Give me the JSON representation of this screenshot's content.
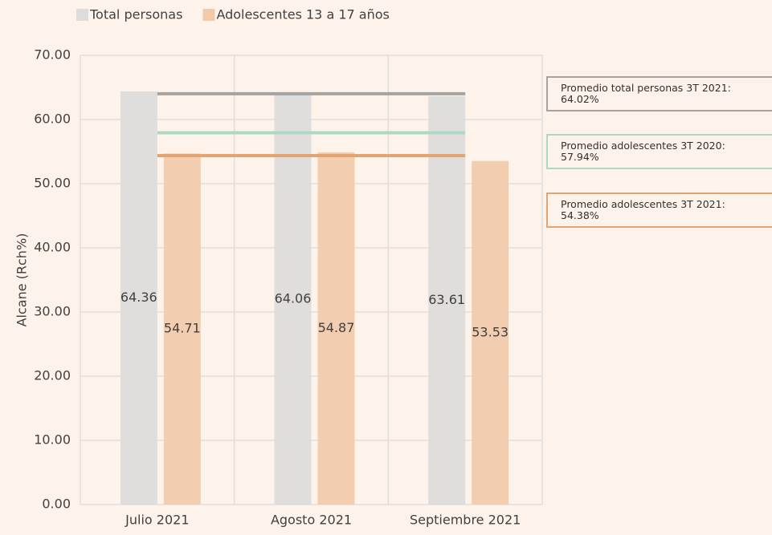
{
  "chart_data": {
    "type": "bar",
    "y_label": "Alcane (Rch%)",
    "categories": [
      "Julio 2021",
      "Agosto 2021",
      "Septiembre 2021"
    ],
    "series": [
      {
        "name": "Total personas",
        "color": "#dcdcdc",
        "values": [
          64.36,
          64.06,
          63.61
        ]
      },
      {
        "name": "Adolescentes 13 a 17 años",
        "color": "#f2c9a9",
        "values": [
          54.71,
          54.87,
          53.53
        ]
      }
    ],
    "ylim": [
      0,
      70
    ],
    "yticks": [
      {
        "value": 0,
        "label": "0.00"
      },
      {
        "value": 10,
        "label": "10.00"
      },
      {
        "value": 20,
        "label": "20.00"
      },
      {
        "value": 30,
        "label": "30.00"
      },
      {
        "value": 40,
        "label": "40.00"
      },
      {
        "value": 50,
        "label": "50.00"
      },
      {
        "value": 60,
        "label": "60.00"
      },
      {
        "value": 70,
        "label": "70.00"
      }
    ],
    "grid": true,
    "reference_lines": [
      {
        "label": "Promedio total personas 3T 2021: 64.02%",
        "value": 64.02,
        "color": "#a3a3a3"
      },
      {
        "label": "Promedio adolescentes 3T 2020: 57.94%",
        "value": 57.94,
        "color": "#acd9c3"
      },
      {
        "label": "Promedio adolescentes 3T 2021: 54.38%",
        "value": 54.38,
        "color": "#e3a474"
      }
    ]
  }
}
